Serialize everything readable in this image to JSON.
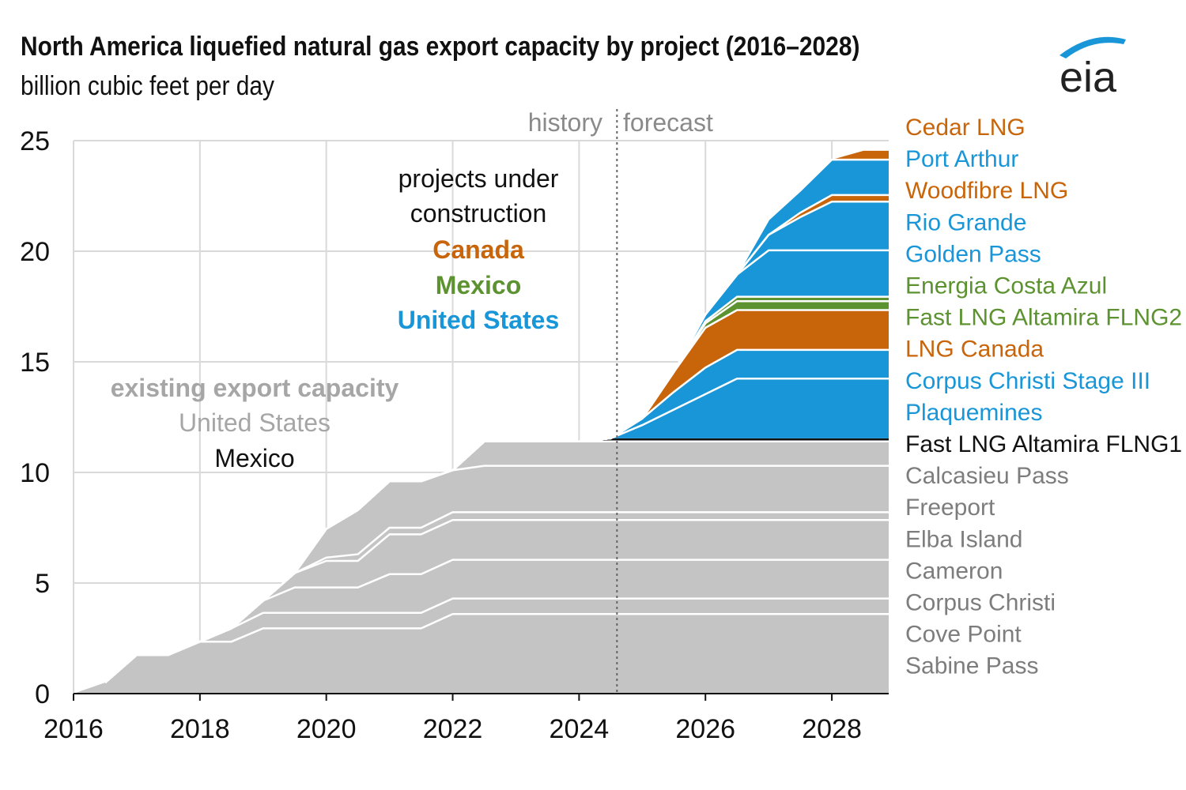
{
  "header": {
    "title": "North America liquefied natural gas export capacity by project (2016–2028)",
    "subtitle": "billion cubic feet per day",
    "logo_text": "eia"
  },
  "colors": {
    "existing": "#c4c4c4",
    "united_states": "#1996d8",
    "canada": "#c8650a",
    "mexico": "#5c9330",
    "mexico_existing": "#111111",
    "existing_label": "#8a8a8a",
    "label_gray": "#7d7d7d",
    "white_line": "#ffffff"
  },
  "annotations": {
    "history": "history",
    "forecast": "forecast",
    "under_construction_line1": "projects under",
    "under_construction_line2": "construction",
    "canada": "Canada",
    "mexico": "Mexico",
    "united_states": "United States",
    "existing_line1": "existing export capacity",
    "existing_us": "United States",
    "existing_mexico": "Mexico"
  },
  "chart_data": {
    "type": "area",
    "stacked": true,
    "title": "North America liquefied natural gas export capacity by project (2016–2028)",
    "ylabel": "billion cubic feet per day",
    "xlim": [
      2016,
      2028.9
    ],
    "ylim": [
      0,
      25
    ],
    "x_ticks": [
      2016,
      2018,
      2020,
      2022,
      2024,
      2026,
      2028
    ],
    "y_ticks": [
      0,
      5,
      10,
      15,
      20,
      25
    ],
    "history_forecast_divider": 2024.6,
    "grid": true,
    "legend": "right",
    "x": [
      2016,
      2016.5,
      2017,
      2017.5,
      2018,
      2018.5,
      2019,
      2019.5,
      2020,
      2020.5,
      2021,
      2021.5,
      2022,
      2022.5,
      2023,
      2023.5,
      2024,
      2024.5,
      2025,
      2025.5,
      2026,
      2026.5,
      2027,
      2027.5,
      2028,
      2028.5,
      2028.9
    ],
    "series": [
      {
        "name": "Sabine Pass",
        "group": "existing_us",
        "values": [
          0,
          0.5,
          1.75,
          1.75,
          2.35,
          2.35,
          2.95,
          2.95,
          2.95,
          2.95,
          2.95,
          2.95,
          3.6,
          3.6,
          3.6,
          3.6,
          3.6,
          3.6,
          3.6,
          3.6,
          3.6,
          3.6,
          3.6,
          3.6,
          3.6,
          3.6,
          3.6
        ]
      },
      {
        "name": "Cove Point",
        "group": "existing_us",
        "values": [
          0,
          0,
          0,
          0,
          0,
          0.6,
          0.7,
          0.7,
          0.7,
          0.7,
          0.7,
          0.7,
          0.7,
          0.7,
          0.7,
          0.7,
          0.7,
          0.7,
          0.7,
          0.7,
          0.7,
          0.7,
          0.7,
          0.7,
          0.7,
          0.7,
          0.7
        ]
      },
      {
        "name": "Corpus Christi",
        "group": "existing_us",
        "values": [
          0,
          0,
          0,
          0,
          0,
          0,
          0.55,
          1.15,
          1.15,
          1.15,
          1.75,
          1.75,
          1.75,
          1.75,
          1.75,
          1.75,
          1.75,
          1.75,
          1.75,
          1.75,
          1.75,
          1.75,
          1.75,
          1.75,
          1.75,
          1.75,
          1.75
        ]
      },
      {
        "name": "Cameron",
        "group": "existing_us",
        "values": [
          0,
          0,
          0,
          0,
          0,
          0,
          0,
          0.65,
          1.2,
          1.2,
          1.8,
          1.8,
          1.8,
          1.8,
          1.8,
          1.8,
          1.8,
          1.8,
          1.8,
          1.8,
          1.8,
          1.8,
          1.8,
          1.8,
          1.8,
          1.8,
          1.8
        ]
      },
      {
        "name": "Elba Island",
        "group": "existing_us",
        "values": [
          0,
          0,
          0,
          0,
          0,
          0,
          0,
          0,
          0.15,
          0.3,
          0.3,
          0.3,
          0.35,
          0.35,
          0.35,
          0.35,
          0.35,
          0.35,
          0.35,
          0.35,
          0.35,
          0.35,
          0.35,
          0.35,
          0.35,
          0.35,
          0.35
        ]
      },
      {
        "name": "Freeport",
        "group": "existing_us",
        "values": [
          0,
          0,
          0,
          0,
          0,
          0,
          0,
          0,
          1.3,
          2.0,
          2.1,
          2.1,
          1.9,
          2.1,
          2.1,
          2.1,
          2.1,
          2.1,
          2.1,
          2.1,
          2.1,
          2.1,
          2.1,
          2.1,
          2.1,
          2.1,
          2.1
        ]
      },
      {
        "name": "Calcasieu Pass",
        "group": "existing_us",
        "values": [
          0,
          0,
          0,
          0,
          0,
          0,
          0,
          0,
          0,
          0,
          0,
          0,
          0,
          1.1,
          1.1,
          1.1,
          1.1,
          1.1,
          1.1,
          1.1,
          1.1,
          1.1,
          1.1,
          1.1,
          1.1,
          1.1,
          1.1
        ]
      },
      {
        "name": "Fast LNG Altamira FLNG1",
        "group": "existing_mexico",
        "values": [
          0,
          0,
          0,
          0,
          0,
          0,
          0,
          0,
          0,
          0,
          0,
          0,
          0,
          0,
          0,
          0,
          0,
          0.14,
          0.14,
          0.14,
          0.14,
          0.14,
          0.14,
          0.14,
          0.14,
          0.14,
          0.14
        ]
      },
      {
        "name": "Plaquemines",
        "group": "us",
        "values": [
          0,
          0,
          0,
          0,
          0,
          0,
          0,
          0,
          0,
          0,
          0,
          0,
          0,
          0,
          0,
          0,
          0,
          0,
          0.6,
          1.3,
          2.0,
          2.7,
          2.7,
          2.7,
          2.7,
          2.7,
          2.7
        ]
      },
      {
        "name": "Corpus Christi Stage III",
        "group": "us",
        "values": [
          0,
          0,
          0,
          0,
          0,
          0,
          0,
          0,
          0,
          0,
          0,
          0,
          0,
          0,
          0,
          0,
          0,
          0,
          0.3,
          0.8,
          1.2,
          1.3,
          1.3,
          1.3,
          1.3,
          1.3,
          1.3
        ]
      },
      {
        "name": "LNG Canada",
        "group": "canada",
        "values": [
          0,
          0,
          0,
          0,
          0,
          0,
          0,
          0,
          0,
          0,
          0,
          0,
          0,
          0,
          0,
          0,
          0,
          0,
          0,
          0.9,
          1.8,
          1.8,
          1.8,
          1.8,
          1.8,
          1.8,
          1.8
        ]
      },
      {
        "name": "Fast LNG Altamira FLNG2",
        "group": "mexico",
        "values": [
          0,
          0,
          0,
          0,
          0,
          0,
          0,
          0,
          0,
          0,
          0,
          0,
          0,
          0,
          0,
          0,
          0,
          0,
          0,
          0,
          0.2,
          0.4,
          0.4,
          0.4,
          0.4,
          0.4,
          0.4
        ]
      },
      {
        "name": "Energia Costa Azul",
        "group": "mexico",
        "values": [
          0,
          0,
          0,
          0,
          0,
          0,
          0,
          0,
          0,
          0,
          0,
          0,
          0,
          0,
          0,
          0,
          0,
          0,
          0,
          0,
          0.1,
          0.2,
          0.2,
          0.2,
          0.2,
          0.2,
          0.2
        ]
      },
      {
        "name": "Golden Pass",
        "group": "us",
        "values": [
          0,
          0,
          0,
          0,
          0,
          0,
          0,
          0,
          0,
          0,
          0,
          0,
          0,
          0,
          0,
          0,
          0,
          0,
          0,
          0,
          0.3,
          1.0,
          2.1,
          2.1,
          2.1,
          2.1,
          2.1
        ]
      },
      {
        "name": "Rio Grande",
        "group": "us",
        "values": [
          0,
          0,
          0,
          0,
          0,
          0,
          0,
          0,
          0,
          0,
          0,
          0,
          0,
          0,
          0,
          0,
          0,
          0,
          0,
          0,
          0,
          0,
          0.7,
          1.5,
          2.2,
          2.2,
          2.2
        ]
      },
      {
        "name": "Woodfibre LNG",
        "group": "canada",
        "values": [
          0,
          0,
          0,
          0,
          0,
          0,
          0,
          0,
          0,
          0,
          0,
          0,
          0,
          0,
          0,
          0,
          0,
          0,
          0,
          0,
          0,
          0,
          0,
          0.2,
          0.3,
          0.3,
          0.3
        ]
      },
      {
        "name": "Port Arthur",
        "group": "us",
        "values": [
          0,
          0,
          0,
          0,
          0,
          0,
          0,
          0,
          0,
          0,
          0,
          0,
          0,
          0,
          0,
          0,
          0,
          0,
          0,
          0,
          0,
          0,
          0.7,
          1.0,
          1.6,
          1.6,
          1.6
        ]
      },
      {
        "name": "Cedar LNG",
        "group": "canada",
        "values": [
          0,
          0,
          0,
          0,
          0,
          0,
          0,
          0,
          0,
          0,
          0,
          0,
          0,
          0,
          0,
          0,
          0,
          0,
          0,
          0,
          0,
          0,
          0,
          0,
          0,
          0.4,
          0.4
        ]
      }
    ]
  }
}
